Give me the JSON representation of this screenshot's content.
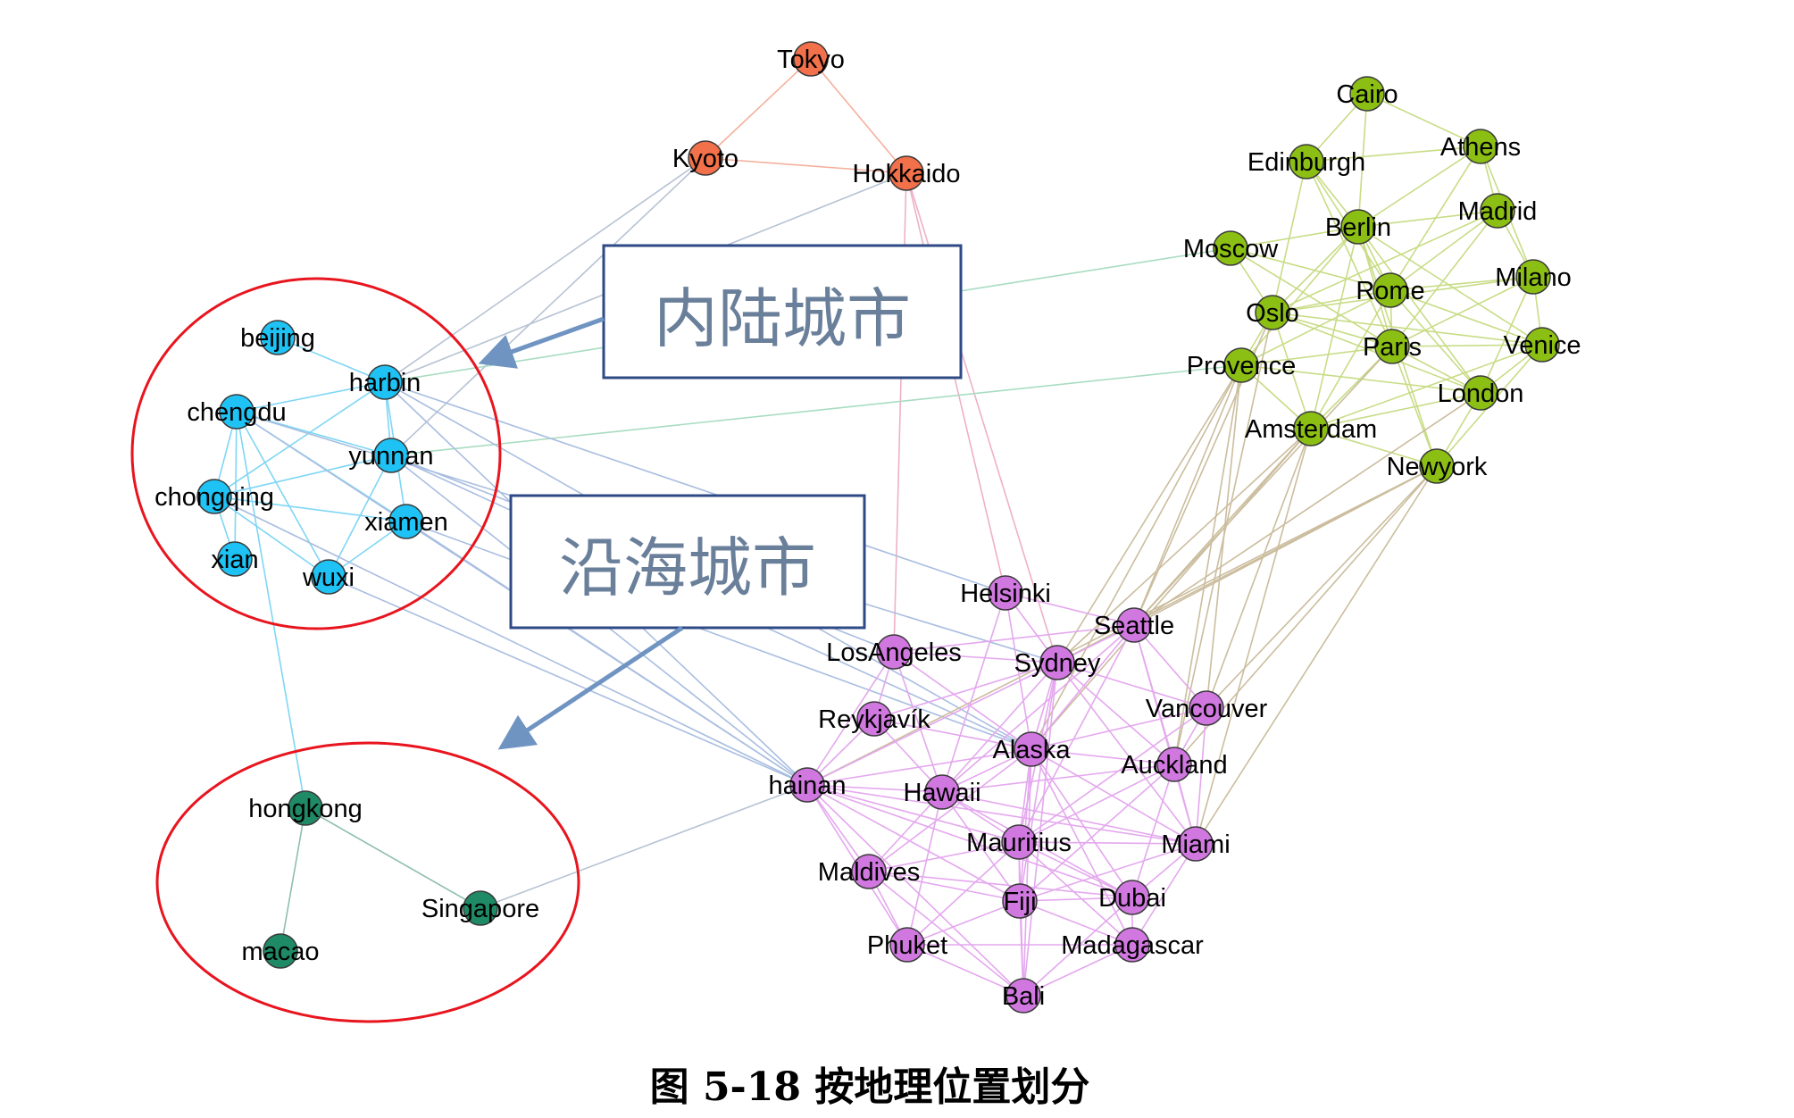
{
  "figure": {
    "caption": "图 5-18  按地理位置划分",
    "callouts": [
      {
        "id": "inland",
        "label": "内陆城市"
      },
      {
        "id": "coastal",
        "label": "沿海城市"
      }
    ],
    "colors": {
      "japan": "#f2704a",
      "china_inland": "#1ec2f4",
      "china_coastal": "#1f8a66",
      "europe": "#8cbf14",
      "world": "#d178e0",
      "ring": "#e8141e",
      "callout_border": "#2e4a86",
      "arrow": "#7094c2"
    },
    "nodes": [
      {
        "id": "Tokyo",
        "group": "japan"
      },
      {
        "id": "Kyoto",
        "group": "japan"
      },
      {
        "id": "Hokkaido",
        "group": "japan"
      },
      {
        "id": "beijing",
        "group": "china_inland"
      },
      {
        "id": "harbin",
        "group": "china_inland"
      },
      {
        "id": "chengdu",
        "group": "china_inland"
      },
      {
        "id": "yunnan",
        "group": "china_inland"
      },
      {
        "id": "chongqing",
        "group": "china_inland"
      },
      {
        "id": "xiamen",
        "group": "china_inland"
      },
      {
        "id": "xian",
        "group": "china_inland"
      },
      {
        "id": "wuxi",
        "group": "china_inland"
      },
      {
        "id": "hongkong",
        "group": "china_coastal"
      },
      {
        "id": "Singapore",
        "group": "china_coastal"
      },
      {
        "id": "macao",
        "group": "china_coastal"
      },
      {
        "id": "Cairo",
        "group": "europe"
      },
      {
        "id": "Edinburgh",
        "group": "europe"
      },
      {
        "id": "Athens",
        "group": "europe"
      },
      {
        "id": "Madrid",
        "group": "europe"
      },
      {
        "id": "Berlin",
        "group": "europe"
      },
      {
        "id": "Moscow",
        "group": "europe"
      },
      {
        "id": "Milano",
        "group": "europe"
      },
      {
        "id": "Rome",
        "group": "europe"
      },
      {
        "id": "Oslo",
        "group": "europe"
      },
      {
        "id": "Paris",
        "group": "europe"
      },
      {
        "id": "Venice",
        "group": "europe"
      },
      {
        "id": "Provence",
        "group": "europe"
      },
      {
        "id": "London",
        "group": "europe"
      },
      {
        "id": "Amsterdam",
        "group": "europe"
      },
      {
        "id": "Newyork",
        "group": "europe"
      },
      {
        "id": "Helsinki",
        "group": "world"
      },
      {
        "id": "Seattle",
        "group": "world"
      },
      {
        "id": "LosAngeles",
        "group": "world"
      },
      {
        "id": "Sydney",
        "group": "world"
      },
      {
        "id": "Vancouver",
        "group": "world"
      },
      {
        "id": "Reykjavík",
        "group": "world"
      },
      {
        "id": "Alaska",
        "group": "world"
      },
      {
        "id": "Auckland",
        "group": "world"
      },
      {
        "id": "hainan",
        "group": "world"
      },
      {
        "id": "Hawaii",
        "group": "world"
      },
      {
        "id": "Mauritius",
        "group": "world"
      },
      {
        "id": "Miami",
        "group": "world"
      },
      {
        "id": "Maldives",
        "group": "world"
      },
      {
        "id": "Fiji",
        "group": "world"
      },
      {
        "id": "Dubai",
        "group": "world"
      },
      {
        "id": "Phuket",
        "group": "world"
      },
      {
        "id": "Madagascar",
        "group": "world"
      },
      {
        "id": "Bali",
        "group": "world"
      }
    ]
  }
}
